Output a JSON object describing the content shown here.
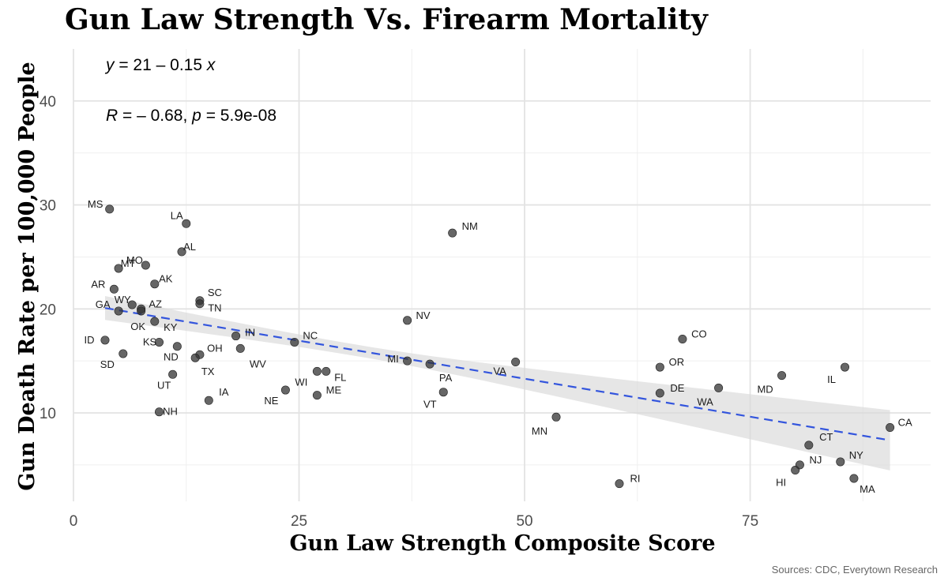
{
  "chart_data": {
    "type": "scatter",
    "title": "Gun Law Strength Vs. Firearm Mortality",
    "xlabel": "Gun Law Strength Composite Score",
    "ylabel": "Gun Death Rate per 100,000 People",
    "xlim": [
      0,
      95
    ],
    "ylim": [
      1.5,
      45
    ],
    "x_ticks": [
      0,
      25,
      50,
      75
    ],
    "y_ticks": [
      10,
      20,
      30,
      40
    ],
    "source": "Sources: CDC, Everytown Research",
    "equation": {
      "y": "y",
      "eq": " = 21 – 0.15 ",
      "x": "x"
    },
    "correlation": {
      "R": "R",
      "r_eq": " = – 0.68, ",
      "p": "p",
      "p_eq": " = 5.9e-08"
    },
    "trend": {
      "intercept": 20.6,
      "slope": -0.1462,
      "x_start": 3.5,
      "x_end": 90.5,
      "se_ends": [
        1.15,
        2.9
      ],
      "se_mid": 0.55,
      "x_mean": 32,
      "color": "#3355dd"
    },
    "points": [
      {
        "state": "MS",
        "x": 4.0,
        "y": 29.6
      },
      {
        "state": "LA",
        "x": 12.5,
        "y": 28.2
      },
      {
        "state": "AL",
        "x": 12.0,
        "y": 25.5
      },
      {
        "state": "MT",
        "x": 5.0,
        "y": 23.9
      },
      {
        "state": "MO",
        "x": 8.0,
        "y": 24.2
      },
      {
        "state": "AK",
        "x": 9.0,
        "y": 22.4
      },
      {
        "state": "AR",
        "x": 4.5,
        "y": 21.9
      },
      {
        "state": "WY",
        "x": 6.5,
        "y": 20.4
      },
      {
        "state": "GA",
        "x": 5.0,
        "y": 19.8
      },
      {
        "state": "AZ",
        "x": 7.5,
        "y": 20.0
      },
      {
        "state": "OK",
        "x": 7.5,
        "y": 19.8
      },
      {
        "state": "SC",
        "x": 14.0,
        "y": 20.8
      },
      {
        "state": "TN",
        "x": 14.0,
        "y": 20.5
      },
      {
        "state": "KY",
        "x": 9.0,
        "y": 18.8
      },
      {
        "state": "ID",
        "x": 3.5,
        "y": 17.0
      },
      {
        "state": "KS",
        "x": 9.5,
        "y": 16.8
      },
      {
        "state": "SD",
        "x": 5.5,
        "y": 15.7
      },
      {
        "state": "ND",
        "x": 11.5,
        "y": 16.4
      },
      {
        "state": "OH",
        "x": 14.0,
        "y": 15.6
      },
      {
        "state": "TX",
        "x": 13.5,
        "y": 15.3
      },
      {
        "state": "IN",
        "x": 18.0,
        "y": 17.4
      },
      {
        "state": "WV",
        "x": 18.5,
        "y": 16.2
      },
      {
        "state": "UT",
        "x": 11.0,
        "y": 13.7
      },
      {
        "state": "NH",
        "x": 9.5,
        "y": 10.1
      },
      {
        "state": "IA",
        "x": 15.0,
        "y": 11.2
      },
      {
        "state": "NC",
        "x": 24.5,
        "y": 16.8
      },
      {
        "state": "WI",
        "x": 27.0,
        "y": 14.0
      },
      {
        "state": "FL",
        "x": 28.0,
        "y": 14.0
      },
      {
        "state": "NE",
        "x": 23.5,
        "y": 12.2
      },
      {
        "state": "ME",
        "x": 27.0,
        "y": 11.7
      },
      {
        "state": "NV",
        "x": 37.0,
        "y": 18.9
      },
      {
        "state": "MI",
        "x": 37.0,
        "y": 15.0
      },
      {
        "state": "PA",
        "x": 39.5,
        "y": 14.7
      },
      {
        "state": "VT",
        "x": 41.0,
        "y": 12.0
      },
      {
        "state": "NM",
        "x": 42.0,
        "y": 27.3
      },
      {
        "state": "VA",
        "x": 49.0,
        "y": 14.9
      },
      {
        "state": "MN",
        "x": 53.5,
        "y": 9.6
      },
      {
        "state": "RI",
        "x": 60.5,
        "y": 3.2
      },
      {
        "state": "CO",
        "x": 67.5,
        "y": 17.1
      },
      {
        "state": "OR",
        "x": 65.0,
        "y": 14.4
      },
      {
        "state": "DE",
        "x": 65.0,
        "y": 11.9
      },
      {
        "state": "WA",
        "x": 71.5,
        "y": 12.4
      },
      {
        "state": "MD",
        "x": 78.5,
        "y": 13.6
      },
      {
        "state": "IL",
        "x": 85.5,
        "y": 14.4
      },
      {
        "state": "CT",
        "x": 81.5,
        "y": 6.9
      },
      {
        "state": "NJ",
        "x": 80.5,
        "y": 5.0
      },
      {
        "state": "HI",
        "x": 80.0,
        "y": 4.5
      },
      {
        "state": "NY",
        "x": 85.0,
        "y": 5.3
      },
      {
        "state": "MA",
        "x": 86.5,
        "y": 3.7
      },
      {
        "state": "CA",
        "x": 90.5,
        "y": 8.6
      }
    ]
  }
}
